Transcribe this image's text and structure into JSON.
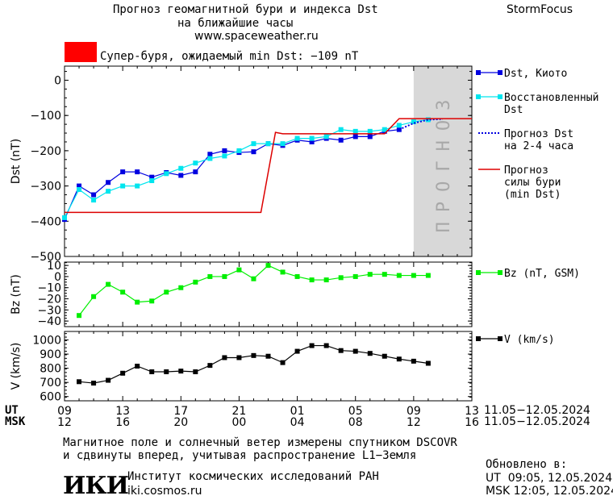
{
  "header": {
    "title_line1": "Прогноз геомагнитной бури и индекса Dst",
    "title_line2": "на ближайшие часы",
    "url": "www.spaceweather.ru",
    "brand": "StormFocus"
  },
  "storm_banner": {
    "text": "Супер-буря, ожидаемый min Dst: −109 nT",
    "color": "#ff0000"
  },
  "forecast_zone_label": "ПРОГНОЗ",
  "time_axis": {
    "ut_label": "UT",
    "msk_label": "MSK",
    "ut_ticks": [
      "09",
      "13",
      "17",
      "21",
      "01",
      "05",
      "09",
      "13"
    ],
    "msk_ticks": [
      "12",
      "16",
      "20",
      "00",
      "04",
      "08",
      "12",
      "16"
    ],
    "date_range_ut": "11.05−12.05.2024",
    "date_range_msk": "11.05−12.05.2024"
  },
  "footer": {
    "note_line1": "Магнитное поле и солнечный ветер измерены спутником DSCOVR",
    "note_line2": "и сдвинуты вперед, учитывая распространение L1−Земля",
    "institute": "Институт космических исследований РАН",
    "institute_url": "iki.cosmos.ru",
    "logo_text": "ИКИ",
    "updated_title": "Обновлено в:",
    "updated_ut": "UT  09:05, 12.05.2024",
    "updated_msk": "MSK 12:05, 12.05.2024"
  },
  "chart_data": [
    {
      "type": "line",
      "ylabel": "Dst (nT)",
      "ylim": [
        -500,
        40
      ],
      "yticks": [
        0,
        -100,
        -200,
        -300,
        -400,
        -500
      ],
      "ytick_labels": [
        "0",
        "−100",
        "−200",
        "−300",
        "−400",
        "−500"
      ],
      "xlim_hours": [
        0,
        28
      ],
      "forecast_region_hours": [
        24,
        28
      ],
      "series": [
        {
          "name": "Dst, Киото",
          "color": "#0000e0",
          "marker": "square",
          "x": [
            0,
            1,
            2,
            3,
            4,
            5,
            6,
            7,
            8,
            9,
            10,
            11,
            12,
            13,
            14,
            15,
            16,
            17,
            18,
            19,
            20,
            21,
            22,
            23
          ],
          "values": [
            -395,
            -300,
            -325,
            -290,
            -260,
            -260,
            -275,
            -262,
            -270,
            -260,
            -210,
            -200,
            -205,
            -203,
            -180,
            -185,
            -170,
            -175,
            -165,
            -170,
            -160,
            -160,
            -145,
            -140
          ]
        },
        {
          "name": "Восстановленный Dst",
          "color": "#00e5ee",
          "marker": "square",
          "x": [
            0,
            1,
            2,
            3,
            4,
            5,
            6,
            7,
            8,
            9,
            10,
            11,
            12,
            13,
            14,
            15,
            16,
            17,
            18,
            19,
            20,
            21,
            22,
            23,
            24,
            25
          ],
          "values": [
            -390,
            -310,
            -340,
            -315,
            -300,
            -300,
            -285,
            -265,
            -250,
            -235,
            -222,
            -215,
            -200,
            -180,
            -180,
            -180,
            -165,
            -165,
            -160,
            -140,
            -145,
            -145,
            -140,
            -128,
            -118,
            -112
          ]
        },
        {
          "name": "Прогноз Dst на 2-4 часа",
          "color": "#0000e0",
          "style": "dotted",
          "x": [
            23,
            24,
            25,
            26
          ],
          "values": [
            -140,
            -122,
            -112,
            -110
          ]
        },
        {
          "name": "Прогноз силы бури (min Dst)",
          "color": "#dd0000",
          "style": "step",
          "x": [
            0,
            13.5,
            14.5,
            15,
            22,
            23,
            28
          ],
          "values": [
            -375,
            -375,
            -148,
            -152,
            -152,
            -109,
            -109
          ]
        }
      ],
      "legend": [
        {
          "label_lines": [
            "Dst, Киото"
          ]
        },
        {
          "label_lines": [
            "Восстановленный",
            "Dst"
          ]
        },
        {
          "label_lines": [
            "Прогноз Dst",
            "на 2-4 часа"
          ]
        },
        {
          "label_lines": [
            "Прогноз",
            "силы бури",
            "(min Dst)"
          ]
        }
      ]
    },
    {
      "type": "line",
      "ylabel": "Bz (nT)",
      "ylim": [
        -45,
        13
      ],
      "yticks": [
        10,
        0,
        -10,
        -20,
        -30,
        -40
      ],
      "ytick_labels": [
        "10",
        "0",
        "−10",
        "−20",
        "−30",
        "−40"
      ],
      "series": [
        {
          "name": "Bz (nT, GSM)",
          "color": "#00ee00",
          "marker": "square",
          "x": [
            1,
            2,
            3,
            4,
            5,
            6,
            7,
            8,
            9,
            10,
            11,
            12,
            13,
            14,
            15,
            16,
            17,
            18,
            19,
            20,
            21,
            22,
            23,
            24,
            25
          ],
          "values": [
            -35,
            -18,
            -7,
            -14,
            -23,
            -22,
            -14,
            -10,
            -5,
            0,
            0,
            6,
            -2,
            10,
            4,
            0,
            -3,
            -3,
            -1,
            0,
            2,
            2,
            1,
            1,
            1
          ]
        }
      ],
      "legend": [
        {
          "label_lines": [
            "Bz (nT, GSM)"
          ]
        }
      ]
    },
    {
      "type": "line",
      "ylabel": "V (km/s)",
      "ylim": [
        570,
        1060
      ],
      "yticks": [
        1000,
        900,
        800,
        700,
        600
      ],
      "ytick_labels": [
        "1000",
        "900",
        "800",
        "700",
        "600"
      ],
      "series": [
        {
          "name": "V (km/s)",
          "color": "#000000",
          "marker": "square",
          "x": [
            1,
            2,
            3,
            4,
            5,
            6,
            7,
            8,
            9,
            10,
            11,
            12,
            13,
            14,
            15,
            16,
            17,
            18,
            19,
            20,
            21,
            22,
            23,
            24,
            25
          ],
          "values": [
            705,
            695,
            715,
            765,
            815,
            775,
            775,
            780,
            775,
            820,
            875,
            875,
            890,
            885,
            840,
            920,
            960,
            960,
            925,
            920,
            905,
            885,
            865,
            850,
            835
          ]
        }
      ],
      "legend": [
        {
          "label_lines": [
            "V (km/s)"
          ]
        }
      ]
    }
  ]
}
